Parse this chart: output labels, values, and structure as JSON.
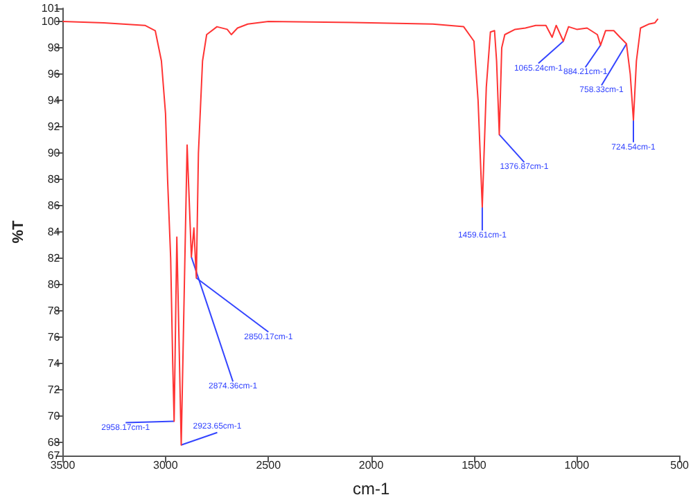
{
  "chart_data": {
    "type": "line",
    "xlabel": "cm-1",
    "ylabel": "%T",
    "x": [
      3500,
      3300,
      3100,
      3050,
      3020,
      3000,
      2990,
      2975,
      2965,
      2958.17,
      2945,
      2923.65,
      2895,
      2874.36,
      2862,
      2850.17,
      2840,
      2820,
      2800,
      2750,
      2700,
      2680,
      2650,
      2600,
      2500,
      2000,
      1700,
      1550,
      1500,
      1480,
      1459.61,
      1440,
      1420,
      1400,
      1390,
      1376.87,
      1365,
      1350,
      1300,
      1250,
      1200,
      1150,
      1120,
      1100,
      1065.24,
      1040,
      1000,
      950,
      900,
      884.21,
      860,
      820,
      790,
      758.33,
      740,
      724.54,
      710,
      690,
      650,
      620,
      605
    ],
    "series": [
      {
        "color": "#ff3333",
        "values": [
          100,
          99.9,
          99.7,
          99.3,
          97,
          93,
          88,
          82,
          74,
          69.6,
          83.6,
          67.8,
          90.6,
          82.1,
          84.3,
          80.5,
          90,
          97,
          99,
          99.6,
          99.4,
          99,
          99.5,
          99.8,
          100,
          99.9,
          99.8,
          99.6,
          98.5,
          94,
          85.9,
          95,
          99.2,
          99.3,
          97,
          91.4,
          98,
          99,
          99.4,
          99.5,
          99.7,
          99.7,
          98.8,
          99.7,
          98.5,
          99.6,
          99.4,
          99.5,
          99,
          98.2,
          99.3,
          99.3,
          98.8,
          98.3,
          96,
          92.5,
          97,
          99.5,
          99.8,
          99.9,
          100.2
        ]
      }
    ],
    "xlim": [
      3500,
      500
    ],
    "xticks": [
      3500,
      3000,
      2500,
      2000,
      1500,
      1000,
      500
    ],
    "ylim": [
      67,
      101
    ],
    "yticks": [
      67,
      68,
      70,
      72,
      74,
      76,
      78,
      80,
      82,
      84,
      86,
      88,
      90,
      92,
      94,
      96,
      98,
      100,
      101
    ],
    "grid": false,
    "marker": "none",
    "line_style": "solid",
    "annotations": [
      {
        "text": "2958.17cm-1",
        "x": 2958.17,
        "y": 69.6
      },
      {
        "text": "2923.65cm-1",
        "x": 2923.65,
        "y": 67.8
      },
      {
        "text": "2874.36cm-1",
        "x": 2874.36,
        "y": 82.1
      },
      {
        "text": "2850.17cm-1",
        "x": 2850.17,
        "y": 80.5
      },
      {
        "text": "1459.61cm-1",
        "x": 1459.61,
        "y": 85.9
      },
      {
        "text": "1376.87cm-1",
        "x": 1376.87,
        "y": 91.4
      },
      {
        "text": "1065.24cm-1",
        "x": 1065.24,
        "y": 98.5
      },
      {
        "text": "884.21cm-1",
        "x": 884.21,
        "y": 98.2
      },
      {
        "text": "758.33cm-1",
        "x": 758.33,
        "y": 98.3
      },
      {
        "text": "724.54cm-1",
        "x": 724.54,
        "y": 92.5
      }
    ]
  }
}
